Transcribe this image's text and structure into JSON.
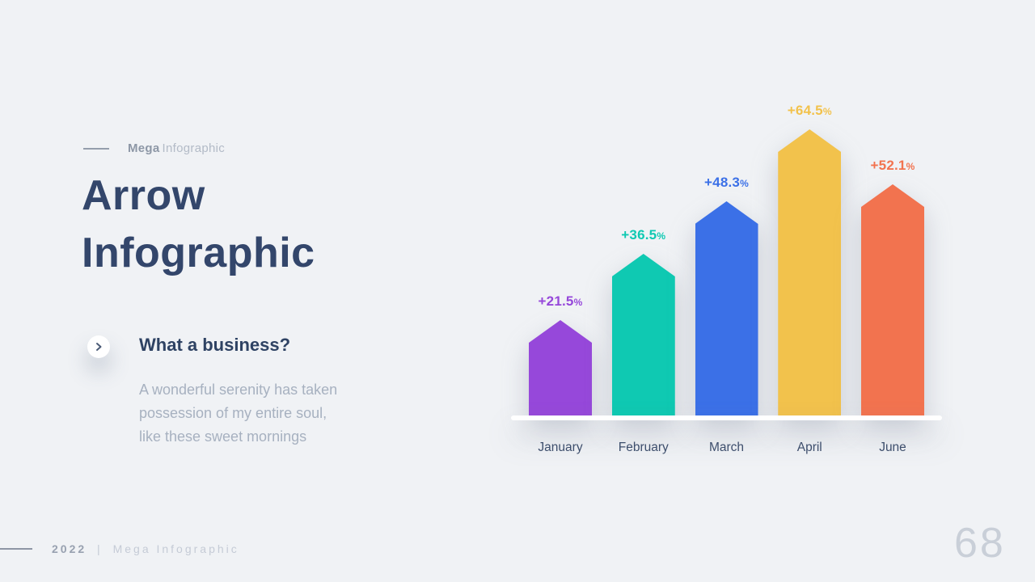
{
  "slide": {
    "eyebrow": {
      "brand": "Mega",
      "suffix": "Infographic"
    },
    "title_line1": "Arrow",
    "title_line2": "Infographic",
    "callout": {
      "heading": "What a business?",
      "body_line1": "A wonderful serenity has taken",
      "body_line2": "possession of my entire soul,",
      "body_line3": "like these sweet mornings"
    },
    "footer": {
      "year": "2022",
      "separator": "|",
      "brand": "Mega Infographic",
      "page_number": "68"
    }
  },
  "chart_data": {
    "type": "bar",
    "title": "Arrow Infographic",
    "categories": [
      "January",
      "February",
      "March",
      "April",
      "June"
    ],
    "values": [
      21.5,
      36.5,
      48.3,
      64.5,
      52.1
    ],
    "label_values": [
      "+21.5",
      "+36.5",
      "+48.3",
      "+64.5",
      "+52.1"
    ],
    "label_suffix": "%",
    "colors": [
      "#9648da",
      "#0fc9b2",
      "#3b70e7",
      "#f2c24c",
      "#f2734f"
    ],
    "bar_shape": "arrow",
    "ylim": [
      0,
      64.5
    ],
    "axis": "hidden",
    "gridlines": false,
    "legend": "none"
  }
}
